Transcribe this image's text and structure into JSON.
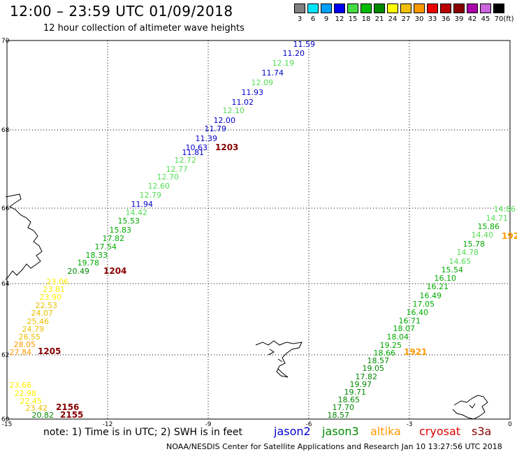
{
  "title": "12:00 – 23:59 UTC 01/09/2018",
  "subtitle": "12 hour collection of altimeter wave heights",
  "legend": {
    "unit": "(ft)",
    "items": [
      {
        "value": "3",
        "color": "#808080"
      },
      {
        "value": "6",
        "color": "#00e5ff"
      },
      {
        "value": "9",
        "color": "#00a0ff"
      },
      {
        "value": "12",
        "color": "#0000ee"
      },
      {
        "value": "15",
        "color": "#44dd44"
      },
      {
        "value": "18",
        "color": "#00bb00"
      },
      {
        "value": "21",
        "color": "#008800"
      },
      {
        "value": "24",
        "color": "#ffff00"
      },
      {
        "value": "27",
        "color": "#f0c000"
      },
      {
        "value": "30",
        "color": "#ff9900"
      },
      {
        "value": "33",
        "color": "#ee0000"
      },
      {
        "value": "36",
        "color": "#bb0000"
      },
      {
        "value": "39",
        "color": "#880000"
      },
      {
        "value": "42",
        "color": "#aa00aa"
      },
      {
        "value": "45",
        "color": "#cc66dd"
      },
      {
        "value": "70",
        "color": "#000000"
      }
    ]
  },
  "axes": {
    "lon_ticks": [
      "-15",
      "-12",
      "-9",
      "-6",
      "-3",
      "0"
    ],
    "lat_ticks": [
      "70",
      "68",
      "66",
      "64",
      "62",
      "60"
    ]
  },
  "satellites": [
    {
      "name": "jason2",
      "color": "#0000cc"
    },
    {
      "name": "jason3",
      "color": "#008800"
    },
    {
      "name": "altika",
      "color": "#ff9900"
    },
    {
      "name": "cryosat",
      "color": "#dd0000"
    },
    {
      "name": "s3a",
      "color": "#880000"
    }
  ],
  "note": "note:  1) Time is in UTC; 2) SWH is in feet",
  "footer": "NOAA/NESDIS Center for Satellite Applications and Research    Jan 10 13:27:56 UTC 2018",
  "track1_labels": [
    "11.59",
    "11.20",
    "12.19",
    "11.74",
    "12.09",
    "11.93",
    "11.02",
    "12.10",
    "12.00",
    "11.79",
    "11.39",
    "10.63",
    "11.81",
    "12.72",
    "12.77",
    "12.70",
    "12.60",
    "12.79",
    "11.94",
    "14.42",
    "15.53",
    "15.83",
    "17.82",
    "17.54",
    "18.33",
    "19.78",
    "20.49",
    "23.06",
    "23.81",
    "23.90",
    "22.53",
    "24.07",
    "25.46",
    "24.79",
    "26.55",
    "28.05",
    "27.84"
  ],
  "track1_colors": [
    "#0000cc",
    "#0000cc",
    "#55dd55",
    "#0000cc",
    "#55dd55",
    "#0000cc",
    "#0000cc",
    "#55dd55",
    "#0000cc",
    "#0000cc",
    "#0000cc",
    "#0000cc",
    "#0000cc",
    "#55dd55",
    "#55dd55",
    "#55dd55",
    "#55dd55",
    "#55dd55",
    "#0000cc",
    "#55dd55",
    "#00aa00",
    "#00aa00",
    "#00aa00",
    "#00aa00",
    "#00aa00",
    "#00aa00",
    "#008800",
    "#ffee00",
    "#ffee00",
    "#ffee00",
    "#e8c000",
    "#e8c000",
    "#e8c000",
    "#e8c000",
    "#e8c000",
    "#ff9900",
    "#ff9900"
  ],
  "track2_labels": [
    "23.66",
    "22.98",
    "22.45",
    "23.42",
    "20.82"
  ],
  "track2_colors": [
    "#ffee00",
    "#ffee00",
    "#ffee00",
    "#e8c000",
    "#008800"
  ],
  "track3_labels": [
    "14.86",
    "14.71",
    "15.86",
    "14.40",
    "15.78",
    "14.78",
    "14.65",
    "15.54",
    "16.10",
    "16.21",
    "16.49",
    "17.05",
    "16.40",
    "16.71",
    "18.07",
    "18.04",
    "19.25",
    "18.66",
    "18.57",
    "19.05",
    "17.82",
    "19.97",
    "19.71",
    "18.65",
    "17.70",
    "18.57"
  ],
  "track3_colors": [
    "#55dd55",
    "#55dd55",
    "#00aa00",
    "#55dd55",
    "#00aa00",
    "#55dd55",
    "#55dd55",
    "#00aa00",
    "#00aa00",
    "#00aa00",
    "#00aa00",
    "#00aa00",
    "#00aa00",
    "#00aa00",
    "#00aa00",
    "#00aa00",
    "#00aa00",
    "#00aa00",
    "#008800",
    "#008800",
    "#008800",
    "#008800",
    "#008800",
    "#008800",
    "#008800",
    "#008800"
  ],
  "time_labels": [
    {
      "text": "1203",
      "color": "#880000"
    },
    {
      "text": "1204",
      "color": "#880000"
    },
    {
      "text": "1205",
      "color": "#880000"
    },
    {
      "text": "2156",
      "color": "#880000"
    },
    {
      "text": "2155",
      "color": "#880000"
    },
    {
      "text": "1921",
      "color": "#ff9900"
    },
    {
      "text": "192",
      "color": "#ff9900"
    }
  ]
}
